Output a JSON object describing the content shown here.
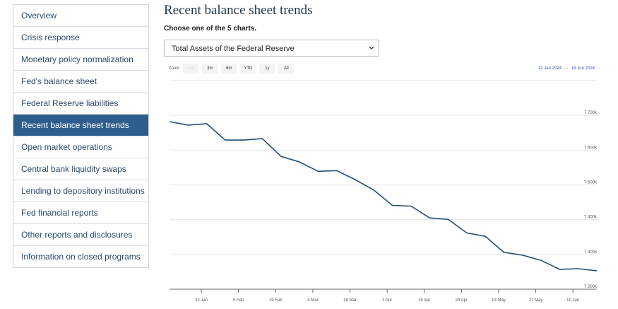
{
  "nav": {
    "items": [
      {
        "label": "Overview",
        "active": false
      },
      {
        "label": "Crisis response",
        "active": false
      },
      {
        "label": "Monetary policy normalization",
        "active": false
      },
      {
        "label": "Fed's balance sheet",
        "active": false
      },
      {
        "label": "Federal Reserve liabilities",
        "active": false
      },
      {
        "label": "Recent balance sheet trends",
        "active": true
      },
      {
        "label": "Open market operations",
        "active": false
      },
      {
        "label": "Central bank liquidity swaps",
        "active": false
      },
      {
        "label": "Lending to depository institutions",
        "active": false
      },
      {
        "label": "Fed financial reports",
        "active": false
      },
      {
        "label": "Other reports and disclosures",
        "active": false
      },
      {
        "label": "Information on closed programs",
        "active": false
      }
    ]
  },
  "header": {
    "title": "Recent balance sheet trends",
    "prompt": "Choose one of the 5 charts."
  },
  "select": {
    "value": "Total Assets of the Federal Reserve"
  },
  "zoom": {
    "label": "Zoom",
    "buttons": [
      {
        "label": "1m",
        "enabled": false
      },
      {
        "label": "3m",
        "enabled": true
      },
      {
        "label": "6m",
        "enabled": true
      },
      {
        "label": "YTD",
        "enabled": true
      },
      {
        "label": "1y",
        "enabled": true
      },
      {
        "label": "All",
        "enabled": true
      }
    ]
  },
  "range": {
    "from": "12 Jan 2024",
    "arrow": "→",
    "to": "18 Jun 2024"
  },
  "chart_data": {
    "type": "line",
    "color": "#1f4e79",
    "x": [
      "10 Jan",
      "17 Jan",
      "24 Jan",
      "31 Jan",
      "7 Feb",
      "14 Feb",
      "21 Feb",
      "28 Feb",
      "6 Mar",
      "13 Mar",
      "20 Mar",
      "27 Mar",
      "3 Apr",
      "10 Apr",
      "17 Apr",
      "24 Apr",
      "1 May",
      "8 May",
      "15 May",
      "22 May",
      "29 May",
      "5 Jun",
      "12 Jun",
      "19 Jun"
    ],
    "values": [
      7682,
      7672,
      7676,
      7629,
      7629,
      7633,
      7582,
      7566,
      7539,
      7541,
      7515,
      7485,
      7441,
      7439,
      7405,
      7401,
      7362,
      7352,
      7306,
      7298,
      7283,
      7257,
      7259,
      7253
    ],
    "xlim": [
      "10 Jan",
      "19 Jun"
    ],
    "xticks": [
      "22 Jan",
      "5 Feb",
      "19 Feb",
      "4 Mar",
      "18 Mar",
      "1 Apr",
      "15 Apr",
      "29 Apr",
      "13 May",
      "27 May",
      "10 Jun"
    ],
    "ylim": [
      7200,
      7800
    ],
    "yticks": [
      {
        "value": 7200,
        "label": "7 200k"
      },
      {
        "value": 7300,
        "label": "7 300k"
      },
      {
        "value": 7400,
        "label": "7 400k"
      },
      {
        "value": 7500,
        "label": "7 500k"
      },
      {
        "value": 7600,
        "label": "7 600k"
      },
      {
        "value": 7700,
        "label": "7 700k"
      }
    ],
    "grid": true
  }
}
